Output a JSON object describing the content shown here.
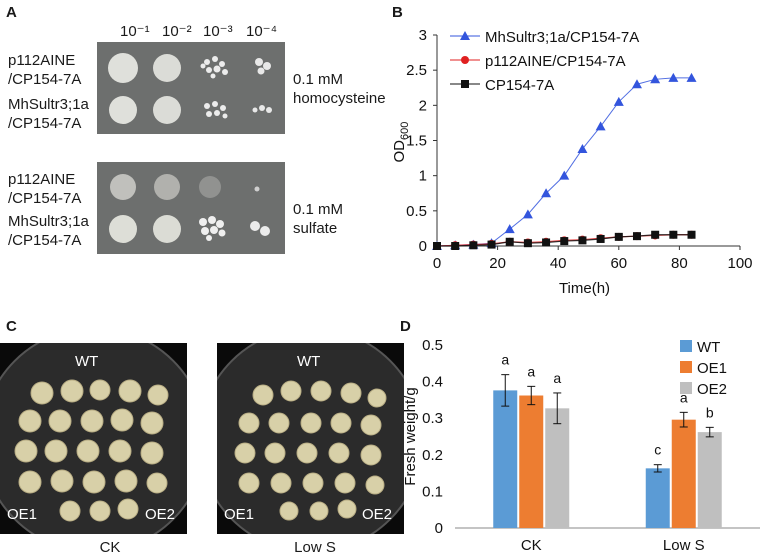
{
  "panelA": {
    "letter": "A",
    "dilutions": [
      "10⁻¹",
      "10⁻²",
      "10⁻³",
      "10⁻⁴"
    ],
    "top": {
      "row1": [
        "p112AINE",
        "/CP154-7A"
      ],
      "row2": [
        "MhSultr3;1a",
        "/CP154-7A"
      ],
      "condition": [
        "0.1 mM",
        "homocysteine"
      ]
    },
    "bottom": {
      "row1": [
        "p112AINE",
        "/CP154-7A"
      ],
      "row2": [
        "MhSultr3;1a",
        "/CP154-7A"
      ],
      "condition": [
        "0.1 mM",
        "sulfate"
      ]
    }
  },
  "panelB": {
    "letter": "B",
    "chart_data": {
      "type": "line",
      "xlabel": "Time(h)",
      "ylabel_main": "OD",
      "ylabel_sub": "600",
      "xlim": [
        0,
        100
      ],
      "ylim": [
        0,
        3
      ],
      "xticks": [
        0,
        20,
        40,
        60,
        80,
        100
      ],
      "yticks": [
        0,
        0.5,
        1,
        1.5,
        2,
        2.5,
        3
      ],
      "ytick_labels": [
        "0",
        "0.5",
        "1",
        "1.5",
        "2",
        "2.5",
        "3"
      ],
      "legend_position": "top-left",
      "series": [
        {
          "name": "MhSultr3;1a/CP154-7A",
          "color": "#3355dd",
          "marker": "triangle",
          "x": [
            0,
            6,
            12,
            18,
            24,
            30,
            36,
            42,
            48,
            54,
            60,
            66,
            72,
            78,
            84
          ],
          "y": [
            0,
            0.01,
            0.02,
            0.04,
            0.24,
            0.45,
            0.75,
            1.0,
            1.38,
            1.7,
            2.05,
            2.3,
            2.37,
            2.39,
            2.39
          ]
        },
        {
          "name": "p112AINE/CP154-7A",
          "color": "#e02020",
          "marker": "circle",
          "x": [
            0,
            6,
            12,
            18,
            24,
            30,
            36,
            42,
            48,
            54,
            60,
            66,
            72,
            78,
            84
          ],
          "y": [
            0,
            0.01,
            0.02,
            0.03,
            0.06,
            0.05,
            0.06,
            0.08,
            0.09,
            0.11,
            0.13,
            0.14,
            0.15,
            0.16,
            0.16
          ]
        },
        {
          "name": "CP154-7A",
          "color": "#111111",
          "marker": "square",
          "x": [
            0,
            6,
            12,
            18,
            24,
            30,
            36,
            42,
            48,
            54,
            60,
            66,
            72,
            78,
            84
          ],
          "y": [
            0,
            0.0,
            0.01,
            0.02,
            0.06,
            0.04,
            0.05,
            0.07,
            0.08,
            0.1,
            0.13,
            0.14,
            0.16,
            0.16,
            0.16
          ]
        }
      ]
    }
  },
  "panelC": {
    "letter": "C",
    "plates": [
      {
        "top": "WT",
        "left": "OE1",
        "right": "OE2",
        "caption": "CK"
      },
      {
        "top": "WT",
        "left": "OE1",
        "right": "OE2",
        "caption": "Low S"
      }
    ]
  },
  "panelD": {
    "letter": "D",
    "chart_data": {
      "type": "bar",
      "ylabel": "Fresh weight/g",
      "categories": [
        "CK",
        "Low S"
      ],
      "ylim": [
        0,
        0.5
      ],
      "yticks": [
        0,
        0.1,
        0.2,
        0.3,
        0.4,
        0.5
      ],
      "ytick_labels": [
        "0",
        "0.1",
        "0.2",
        "0.3",
        "0.4",
        "0.5"
      ],
      "legend_position": "top-right",
      "series": [
        {
          "name": "WT",
          "color": "#5b9bd5",
          "values": [
            0.376,
            0.163
          ],
          "errors": [
            0.043,
            0.01
          ],
          "letters": [
            "a",
            "c"
          ]
        },
        {
          "name": "OE1",
          "color": "#ed7d31",
          "values": [
            0.362,
            0.296
          ],
          "errors": [
            0.025,
            0.02
          ],
          "letters": [
            "a",
            "a"
          ]
        },
        {
          "name": "OE2",
          "color": "#bfbfbf",
          "values": [
            0.327,
            0.262
          ],
          "errors": [
            0.042,
            0.013
          ],
          "letters": [
            "a",
            "b"
          ]
        }
      ]
    }
  }
}
